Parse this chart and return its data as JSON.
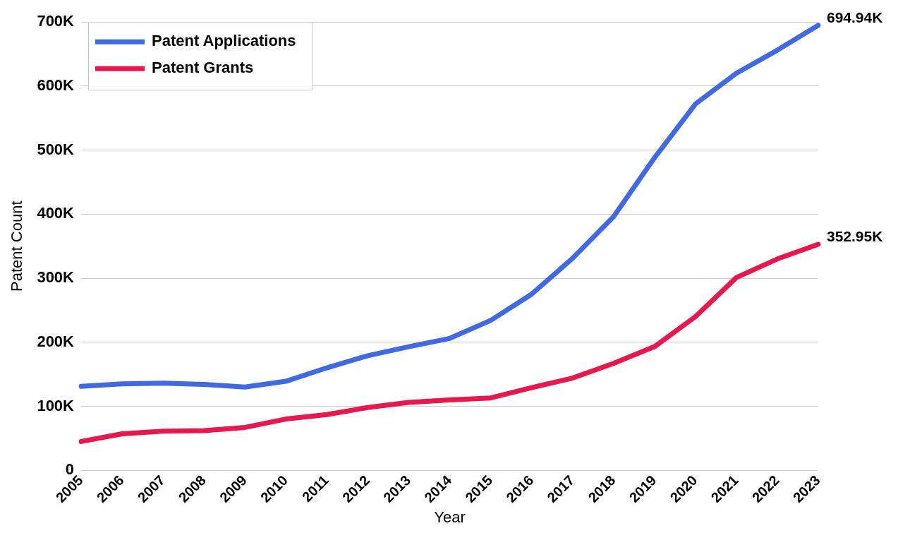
{
  "chart_data": {
    "type": "line",
    "xlabel": "Year",
    "ylabel": "Patent Count",
    "categories": [
      "2005",
      "2006",
      "2007",
      "2008",
      "2009",
      "2010",
      "2011",
      "2012",
      "2013",
      "2014",
      "2015",
      "2016",
      "2017",
      "2018",
      "2019",
      "2020",
      "2021",
      "2022",
      "2023"
    ],
    "series": [
      {
        "name": "Patent Applications",
        "color": "#4169e1",
        "values": [
          131000,
          135000,
          136000,
          134000,
          130000,
          139000,
          160000,
          179000,
          193000,
          206000,
          234000,
          275000,
          331000,
          396000,
          488000,
          572000,
          620000,
          656000,
          694940
        ]
      },
      {
        "name": "Patent Grants",
        "color": "#e8174d",
        "values": [
          45000,
          57000,
          61000,
          62000,
          67000,
          80000,
          87000,
          98000,
          106000,
          110000,
          113000,
          129000,
          144000,
          167000,
          193000,
          240000,
          301000,
          330000,
          352950
        ]
      }
    ],
    "ylim": [
      0,
      700000
    ],
    "yticks": [
      {
        "value": 0,
        "label": "0"
      },
      {
        "value": 100000,
        "label": "100K"
      },
      {
        "value": 200000,
        "label": "200K"
      },
      {
        "value": 300000,
        "label": "300K"
      },
      {
        "value": 400000,
        "label": "400K"
      },
      {
        "value": 500000,
        "label": "500K"
      },
      {
        "value": 600000,
        "label": "600K"
      },
      {
        "value": 700000,
        "label": "700K"
      }
    ],
    "annotations": [
      {
        "text": "694.94K",
        "x": "2023",
        "y": 694940
      },
      {
        "text": "352.95K",
        "x": "2023",
        "y": 352950
      }
    ],
    "grid": "y",
    "legend": "top left",
    "marker": "none",
    "line_style": "solid"
  }
}
